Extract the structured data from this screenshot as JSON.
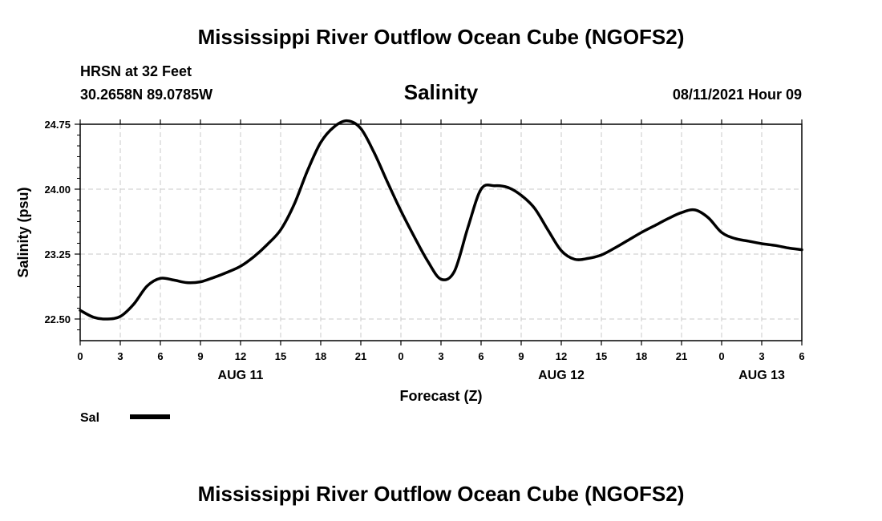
{
  "header": {
    "title": "Mississippi River Outflow Ocean Cube (NGOFS2)",
    "station": "HRSN at 32 Feet",
    "coords": "30.2658N  89.0785W",
    "parameter": "Salinity",
    "timestamp": "08/11/2021 Hour 09"
  },
  "footer": {
    "title": "Mississippi River Outflow Ocean Cube (NGOFS2)"
  },
  "chart_data": {
    "type": "line",
    "title": "Salinity",
    "xlabel": "Forecast (Z)",
    "ylabel": "Salinity (psu)",
    "xlim": [
      0,
      54
    ],
    "ylim": [
      22.25,
      24.75
    ],
    "x_ticks": [
      0,
      3,
      6,
      9,
      12,
      15,
      18,
      21,
      24,
      27,
      30,
      33,
      36,
      39,
      42,
      45,
      48,
      51,
      54
    ],
    "x_tick_labels": [
      "0",
      "3",
      "6",
      "9",
      "12",
      "15",
      "18",
      "21",
      "0",
      "3",
      "6",
      "9",
      "12",
      "15",
      "18",
      "21",
      "0",
      "3",
      "6"
    ],
    "y_ticks": [
      22.5,
      23.25,
      24.0,
      24.75
    ],
    "y_tick_labels": [
      "22.50",
      "23.25",
      "24.00",
      "24.75"
    ],
    "date_labels": [
      {
        "x": 12,
        "label": "AUG 11"
      },
      {
        "x": 36,
        "label": "AUG 12"
      },
      {
        "x": 51,
        "label": "AUG 13"
      }
    ],
    "grid": true,
    "legend": {
      "position": "bottom-left",
      "entries": [
        "Sal"
      ]
    },
    "series": [
      {
        "name": "Sal",
        "x": [
          0,
          1,
          2,
          3,
          4,
          5,
          6,
          7,
          8,
          9,
          10,
          11,
          12,
          13,
          14,
          15,
          16,
          17,
          18,
          19,
          20,
          21,
          22,
          23,
          24,
          25,
          26,
          27,
          28,
          29,
          30,
          31,
          32,
          33,
          34,
          35,
          36,
          37,
          38,
          39,
          40,
          41,
          42,
          43,
          44,
          45,
          46,
          47,
          48,
          49,
          50,
          51,
          52,
          53,
          54
        ],
        "values": [
          22.6,
          22.52,
          22.5,
          22.53,
          22.67,
          22.88,
          22.97,
          22.95,
          22.92,
          22.93,
          22.98,
          23.04,
          23.11,
          23.22,
          23.36,
          23.53,
          23.82,
          24.21,
          24.54,
          24.72,
          24.79,
          24.7,
          24.42,
          24.08,
          23.75,
          23.45,
          23.17,
          22.96,
          23.05,
          23.55,
          24.0,
          24.04,
          24.02,
          23.93,
          23.78,
          23.53,
          23.29,
          23.19,
          23.2,
          23.24,
          23.32,
          23.41,
          23.5,
          23.58,
          23.66,
          23.73,
          23.76,
          23.67,
          23.5,
          23.43,
          23.4,
          23.37,
          23.35,
          23.32,
          23.3
        ]
      }
    ]
  }
}
